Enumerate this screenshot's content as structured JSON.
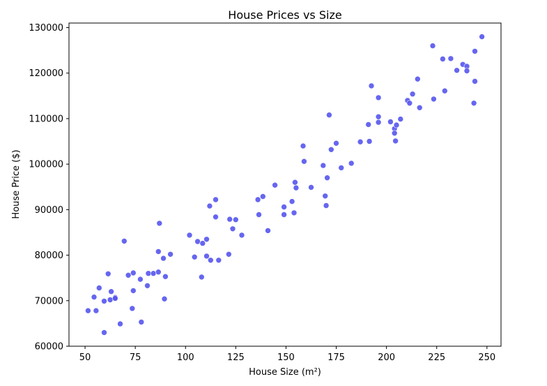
{
  "chart_data": {
    "type": "scatter",
    "title": "House Prices vs Size",
    "xlabel": "House Size (m²)",
    "ylabel": "House Price ($)",
    "xlim": [
      42,
      257
    ],
    "ylim": [
      60000,
      131000
    ],
    "x_ticks": [
      50,
      75,
      100,
      125,
      150,
      175,
      200,
      225,
      250
    ],
    "x_tick_labels": [
      "50",
      "75",
      "100",
      "125",
      "150",
      "175",
      "200",
      "225",
      "250"
    ],
    "y_ticks": [
      60000,
      70000,
      80000,
      90000,
      100000,
      110000,
      120000,
      130000
    ],
    "y_tick_labels": [
      "60000",
      "70000",
      "80000",
      "90000",
      "100000",
      "110000",
      "120000",
      "130000"
    ],
    "grid": false,
    "legend": "none",
    "marker_color": "#5555ee",
    "points": [
      [
        51.5,
        67800
      ],
      [
        54.5,
        70800
      ],
      [
        55.5,
        67800
      ],
      [
        57,
        72800
      ],
      [
        59.5,
        63000
      ],
      [
        59.5,
        69900
      ],
      [
        61.5,
        75900
      ],
      [
        62.5,
        70200
      ],
      [
        63,
        72000
      ],
      [
        65,
        70700
      ],
      [
        65,
        70500
      ],
      [
        67.5,
        64900
      ],
      [
        69.5,
        83100
      ],
      [
        71.5,
        75600
      ],
      [
        73.5,
        68300
      ],
      [
        74,
        76100
      ],
      [
        74,
        72200
      ],
      [
        77.5,
        74700
      ],
      [
        78,
        65300
      ],
      [
        81,
        73300
      ],
      [
        81.5,
        76000
      ],
      [
        84,
        76000
      ],
      [
        86.5,
        76300
      ],
      [
        86.5,
        80800
      ],
      [
        87,
        87000
      ],
      [
        89,
        79300
      ],
      [
        89.5,
        70400
      ],
      [
        90,
        75300
      ],
      [
        92.5,
        80200
      ],
      [
        102,
        84400
      ],
      [
        104.5,
        79600
      ],
      [
        106,
        83000
      ],
      [
        108,
        75200
      ],
      [
        108.5,
        82600
      ],
      [
        110.5,
        83500
      ],
      [
        110.5,
        79800
      ],
      [
        112,
        90800
      ],
      [
        112.5,
        78900
      ],
      [
        115,
        92200
      ],
      [
        115,
        88400
      ],
      [
        116.5,
        78900
      ],
      [
        121.5,
        80200
      ],
      [
        122,
        87900
      ],
      [
        123.5,
        85800
      ],
      [
        125,
        87800
      ],
      [
        128,
        84400
      ],
      [
        136,
        92200
      ],
      [
        136.5,
        88900
      ],
      [
        138.5,
        92900
      ],
      [
        141,
        85400
      ],
      [
        144.5,
        95400
      ],
      [
        149,
        88900
      ],
      [
        149,
        90600
      ],
      [
        153,
        91800
      ],
      [
        154,
        89300
      ],
      [
        154.5,
        96000
      ],
      [
        155,
        94800
      ],
      [
        158.5,
        104000
      ],
      [
        159,
        100600
      ],
      [
        162.5,
        94900
      ],
      [
        168.5,
        99700
      ],
      [
        169.5,
        93000
      ],
      [
        170,
        90900
      ],
      [
        170.5,
        97000
      ],
      [
        171.5,
        110800
      ],
      [
        172.5,
        103200
      ],
      [
        175,
        104600
      ],
      [
        177.5,
        99200
      ],
      [
        182.5,
        100200
      ],
      [
        187,
        104900
      ],
      [
        191,
        108700
      ],
      [
        191.5,
        105000
      ],
      [
        192.5,
        117200
      ],
      [
        196,
        114600
      ],
      [
        196,
        110400
      ],
      [
        196,
        109200
      ],
      [
        202,
        109300
      ],
      [
        204,
        107800
      ],
      [
        204,
        106800
      ],
      [
        204.5,
        105100
      ],
      [
        205,
        108600
      ],
      [
        207,
        109900
      ],
      [
        210.5,
        114000
      ],
      [
        211.5,
        113400
      ],
      [
        213,
        115400
      ],
      [
        215.5,
        118700
      ],
      [
        216.5,
        112400
      ],
      [
        223,
        126000
      ],
      [
        223.5,
        114300
      ],
      [
        228,
        123100
      ],
      [
        229,
        116100
      ],
      [
        232,
        123200
      ],
      [
        235,
        120600
      ],
      [
        238,
        121900
      ],
      [
        240,
        121500
      ],
      [
        240,
        120500
      ],
      [
        243.5,
        113400
      ],
      [
        244,
        124800
      ],
      [
        244,
        118200
      ],
      [
        247.5,
        128000
      ]
    ]
  }
}
